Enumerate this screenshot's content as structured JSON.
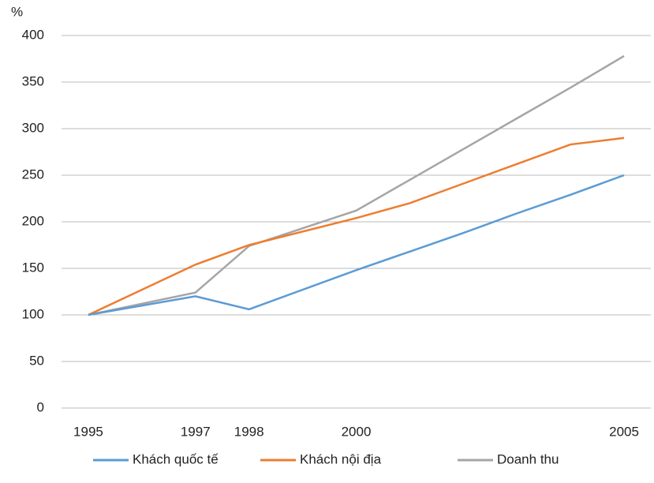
{
  "chart_data": {
    "type": "line",
    "y_label": "%",
    "x": [
      1995,
      1997,
      1998,
      2000,
      2001,
      2002,
      2003,
      2004,
      2005
    ],
    "series": [
      {
        "name": "Khách quốc tế",
        "color": "#5b9bd5",
        "values": [
          100,
          120,
          106,
          148,
          168,
          188,
          209,
          229,
          250
        ]
      },
      {
        "name": "Khách nội địa",
        "color": "#ed7d31",
        "values": [
          100,
          154,
          175,
          204,
          220,
          241,
          262,
          283,
          290
        ]
      },
      {
        "name": "Doanh thu",
        "color": "#a5a5a5",
        "values": [
          100,
          124,
          174,
          212,
          245,
          278,
          311,
          344,
          378
        ]
      }
    ],
    "xlim": [
      1994.5,
      2005.5
    ],
    "xticks": [
      1995,
      1997,
      1998,
      2000,
      2005
    ],
    "ylim": [
      0,
      400
    ],
    "yticks": [
      0,
      50,
      100,
      150,
      200,
      250,
      300,
      350,
      400
    ],
    "grid": true,
    "legend": "bottom"
  }
}
